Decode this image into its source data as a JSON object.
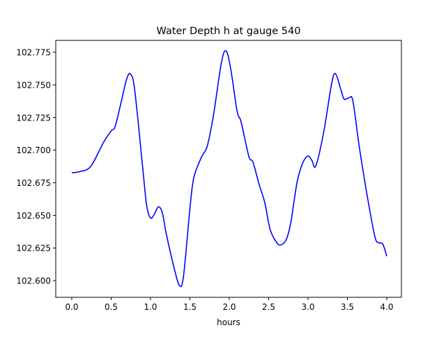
{
  "chart_data": {
    "type": "line",
    "title": "Water Depth h at gauge 540",
    "xlabel": "hours",
    "ylabel": "",
    "xlim": [
      -0.2035,
      4.186
    ],
    "ylim": [
      102.5872,
      102.7841
    ],
    "xticks": [
      0.0,
      0.5,
      1.0,
      1.5,
      2.0,
      2.5,
      3.0,
      3.5,
      4.0
    ],
    "xtick_labels": [
      "0.0",
      "0.5",
      "1.0",
      "1.5",
      "2.0",
      "2.5",
      "3.0",
      "3.5",
      "4.0"
    ],
    "yticks": [
      102.6,
      102.625,
      102.65,
      102.675,
      102.7,
      102.725,
      102.75,
      102.775
    ],
    "ytick_labels": [
      "102.600",
      "102.625",
      "102.650",
      "102.675",
      "102.700",
      "102.725",
      "102.750",
      "102.775"
    ],
    "grid": false,
    "series": [
      {
        "name": "h",
        "color": "#0000ff",
        "x": [
          0.0,
          0.1,
          0.24,
          0.4,
          0.5,
          0.55,
          0.62,
          0.7,
          0.75,
          0.8,
          0.9,
          0.95,
          1.0,
          1.05,
          1.1,
          1.15,
          1.2,
          1.3,
          1.37,
          1.42,
          1.5,
          1.55,
          1.65,
          1.72,
          1.8,
          1.9,
          1.96,
          2.02,
          2.1,
          2.15,
          2.25,
          2.3,
          2.38,
          2.45,
          2.52,
          2.6,
          2.65,
          2.72,
          2.78,
          2.86,
          2.93,
          3.0,
          3.05,
          3.1,
          3.2,
          3.3,
          3.35,
          3.42,
          3.46,
          3.52,
          3.57,
          3.65,
          3.75,
          3.85,
          3.9,
          3.95,
          4.0
        ],
        "y": [
          102.6827,
          102.6835,
          102.6875,
          102.7056,
          102.7147,
          102.718,
          102.735,
          102.755,
          102.758,
          102.7457,
          102.687,
          102.658,
          102.648,
          102.651,
          102.6566,
          102.652,
          102.636,
          102.6096,
          102.596,
          102.604,
          102.655,
          102.679,
          102.695,
          102.703,
          102.727,
          102.767,
          102.776,
          102.7617,
          102.7297,
          102.7216,
          102.695,
          102.691,
          102.6736,
          102.66,
          102.639,
          102.6294,
          102.6273,
          102.631,
          102.644,
          102.675,
          102.6897,
          102.6955,
          102.692,
          102.688,
          102.714,
          102.751,
          102.7585,
          102.7457,
          102.739,
          102.74,
          102.7377,
          102.703,
          102.6656,
          102.6336,
          102.629,
          102.628,
          102.6187
        ]
      }
    ]
  }
}
